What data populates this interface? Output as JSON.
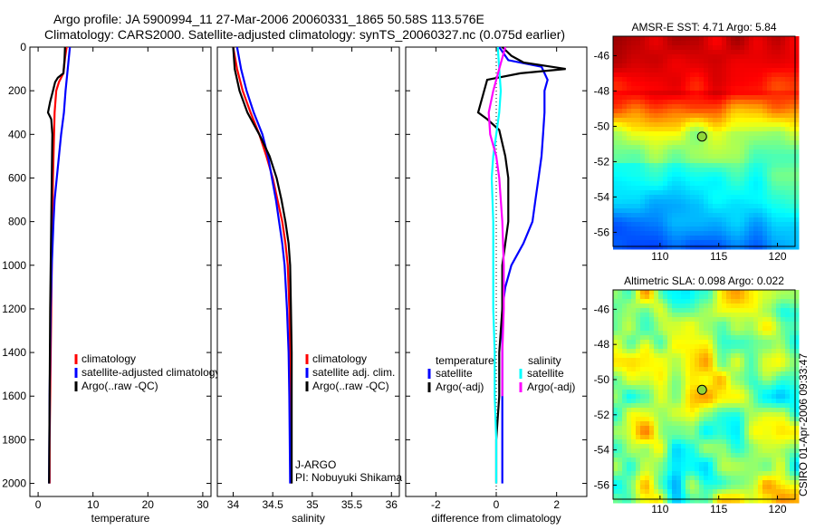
{
  "header": {
    "title_line1": "Argo profile: JA 5900994_11 27-Mar-2006 20060331_1865 50.58S 113.576E",
    "title_line2": "Climatology: CARS2000. Satellite-adjusted climatology: synTS_20060327.nc (0.075d earlier)"
  },
  "footer": {
    "credit": "CSIRO 01-Apr-2006 09:33:47"
  },
  "chart_data": [
    {
      "id": "temperature",
      "type": "line",
      "xlabel": "temperature",
      "ylabel": "",
      "xlim": [
        -1.5,
        31.5
      ],
      "ylim": [
        2060,
        0
      ],
      "xticks": [
        0,
        10,
        20,
        30
      ],
      "yticks": [
        0,
        200,
        400,
        600,
        800,
        1000,
        1200,
        1400,
        1600,
        1800,
        2000
      ],
      "legend": [
        "climatology",
        "satellite-adjusted climatology",
        "Argo(..raw -QC)"
      ],
      "series": [
        {
          "name": "climatology",
          "color": "#ff0000",
          "x": [
            5.2,
            4.9,
            4.6,
            3.8,
            3.3,
            3.0,
            2.9,
            2.8,
            2.7,
            2.6,
            2.5,
            2.4,
            2.3,
            2.2,
            2.1,
            2.1
          ],
          "y": [
            0,
            50,
            120,
            160,
            200,
            300,
            400,
            500,
            600,
            800,
            1000,
            1200,
            1400,
            1600,
            1800,
            2000
          ]
        },
        {
          "name": "satellite-adjusted climatology",
          "color": "#0000ff",
          "x": [
            5.8,
            5.6,
            5.4,
            5.2,
            5.0,
            4.7,
            4.2,
            3.8,
            3.4,
            3.0,
            2.8,
            2.5,
            2.3,
            2.2,
            2.1,
            2.0
          ],
          "y": [
            0,
            50,
            100,
            150,
            200,
            300,
            400,
            500,
            600,
            700,
            800,
            1000,
            1200,
            1400,
            1600,
            2000
          ]
        },
        {
          "name": "Argo(..raw -QC)",
          "color": "#000000",
          "x": [
            4.9,
            4.8,
            4.6,
            3.6,
            3.1,
            2.7,
            2.2,
            1.8,
            2.4,
            2.6,
            2.5,
            2.4,
            2.3,
            2.2,
            2.1,
            2.0
          ],
          "y": [
            0,
            60,
            120,
            140,
            160,
            200,
            250,
            300,
            330,
            400,
            600,
            800,
            1000,
            1200,
            1600,
            2000
          ]
        }
      ]
    },
    {
      "id": "salinity",
      "type": "line",
      "xlabel": "salinity",
      "ylabel": "",
      "xlim": [
        33.8,
        36.1
      ],
      "ylim": [
        2060,
        0
      ],
      "xticks": [
        34,
        34.5,
        35,
        35.5,
        36
      ],
      "legend": [
        "climatology",
        "satellite adj. clim.",
        "Argo(..raw -QC)"
      ],
      "annotation": [
        "J-ARGO",
        "PI: Nobuyuki Shikama"
      ],
      "series": [
        {
          "name": "climatology",
          "color": "#ff0000",
          "x": [
            34.0,
            34.05,
            34.12,
            34.22,
            34.33,
            34.42,
            34.5,
            34.56,
            34.62,
            34.66,
            34.69,
            34.71,
            34.72,
            34.73,
            34.73
          ],
          "y": [
            0,
            100,
            200,
            300,
            400,
            500,
            600,
            700,
            800,
            900,
            1000,
            1200,
            1400,
            1600,
            2000
          ]
        },
        {
          "name": "satellite adj. clim.",
          "color": "#0000ff",
          "x": [
            34.05,
            34.1,
            34.17,
            34.26,
            34.37,
            34.44,
            34.49,
            34.54,
            34.58,
            34.62,
            34.65,
            34.68,
            34.7,
            34.71,
            34.72
          ],
          "y": [
            0,
            100,
            200,
            300,
            400,
            500,
            600,
            700,
            800,
            900,
            1000,
            1200,
            1400,
            1600,
            2000
          ]
        },
        {
          "name": "Argo(..raw -QC)",
          "color": "#000000",
          "x": [
            34.0,
            34.02,
            34.08,
            34.18,
            34.33,
            34.46,
            34.55,
            34.61,
            34.66,
            34.7,
            34.72,
            34.73,
            34.74,
            34.74,
            34.74
          ],
          "y": [
            0,
            100,
            200,
            300,
            400,
            500,
            600,
            700,
            800,
            900,
            1000,
            1200,
            1400,
            1600,
            2000
          ]
        }
      ]
    },
    {
      "id": "difference",
      "type": "line",
      "xlabel": "difference from climatology",
      "ylabel": "",
      "xlim": [
        -3,
        3
      ],
      "ylim": [
        2060,
        0
      ],
      "xticks": [
        -2,
        0,
        2
      ],
      "legend_temperature": {
        "heading": "temperature",
        "items": [
          "satellite",
          "Argo(-adj)"
        ]
      },
      "legend_salinity": {
        "heading": "salinity",
        "items": [
          "satellite",
          "Argo(-adj)"
        ]
      },
      "series": [
        {
          "name": "temperature satellite",
          "color": "#0000ff",
          "x": [
            0.1,
            0.4,
            1.5,
            1.7,
            1.6,
            1.6,
            1.55,
            1.5,
            1.4,
            1.3,
            1.2,
            0.9,
            0.5,
            0.3,
            0.2,
            0.2,
            0.2,
            0.2,
            0.2
          ],
          "y": [
            0,
            60,
            90,
            150,
            200,
            300,
            400,
            500,
            600,
            700,
            800,
            900,
            1000,
            1100,
            1200,
            1400,
            1600,
            1800,
            2000
          ]
        },
        {
          "name": "temperature Argo(-adj)",
          "color": "#000000",
          "x": [
            0.2,
            0.5,
            0.9,
            2.3,
            0.8,
            -0.3,
            -0.6,
            -0.3,
            0.1,
            0.3,
            0.4,
            0.4,
            0.3,
            0.2,
            0.2,
            0.1,
            0.1,
            0.0,
            0.0
          ],
          "y": [
            0,
            40,
            70,
            100,
            120,
            150,
            300,
            330,
            380,
            500,
            600,
            800,
            900,
            1000,
            1200,
            1400,
            1600,
            1800,
            2000
          ]
        },
        {
          "name": "salinity satellite",
          "color": "#00ffff",
          "x": [
            0.05,
            0.1,
            0.15,
            0.1,
            0.0,
            -0.1,
            -0.15,
            -0.1,
            -0.1,
            -0.1,
            -0.05,
            -0.05,
            0.0,
            0.0
          ],
          "y": [
            0,
            100,
            200,
            300,
            400,
            500,
            600,
            800,
            1000,
            1200,
            1400,
            1600,
            1800,
            2000
          ]
        },
        {
          "name": "salinity Argo(-adj)",
          "color": "#ff00ff",
          "x": [
            0.3,
            0.1,
            -0.1,
            -0.25,
            -0.2,
            0.0,
            0.1,
            0.2,
            0.25,
            0.25,
            0.2,
            0.2
          ],
          "y": [
            0,
            100,
            200,
            300,
            400,
            500,
            600,
            800,
            1000,
            1200,
            1400,
            1600
          ]
        }
      ]
    },
    {
      "id": "sst_map",
      "type": "heatmap",
      "title": "AMSR-E SST: 4.71  Argo: 5.84",
      "xlim": [
        106,
        121.5
      ],
      "ylim": [
        -56.8,
        -44.9
      ],
      "xticks": [
        110,
        115,
        120
      ],
      "yticks": [
        -46,
        -48,
        -50,
        -52,
        -54,
        -56
      ],
      "marker": {
        "lon": 113.576,
        "lat": -50.58
      }
    },
    {
      "id": "sla_map",
      "type": "heatmap",
      "title": "Altimetric SLA: 0.098  Argo: 0.022",
      "xlim": [
        106,
        121.5
      ],
      "ylim": [
        -56.8,
        -44.9
      ],
      "xticks": [
        110,
        115,
        120
      ],
      "yticks": [
        -46,
        -48,
        -50,
        -52,
        -54,
        -56
      ],
      "marker": {
        "lon": 113.576,
        "lat": -50.58
      }
    }
  ]
}
